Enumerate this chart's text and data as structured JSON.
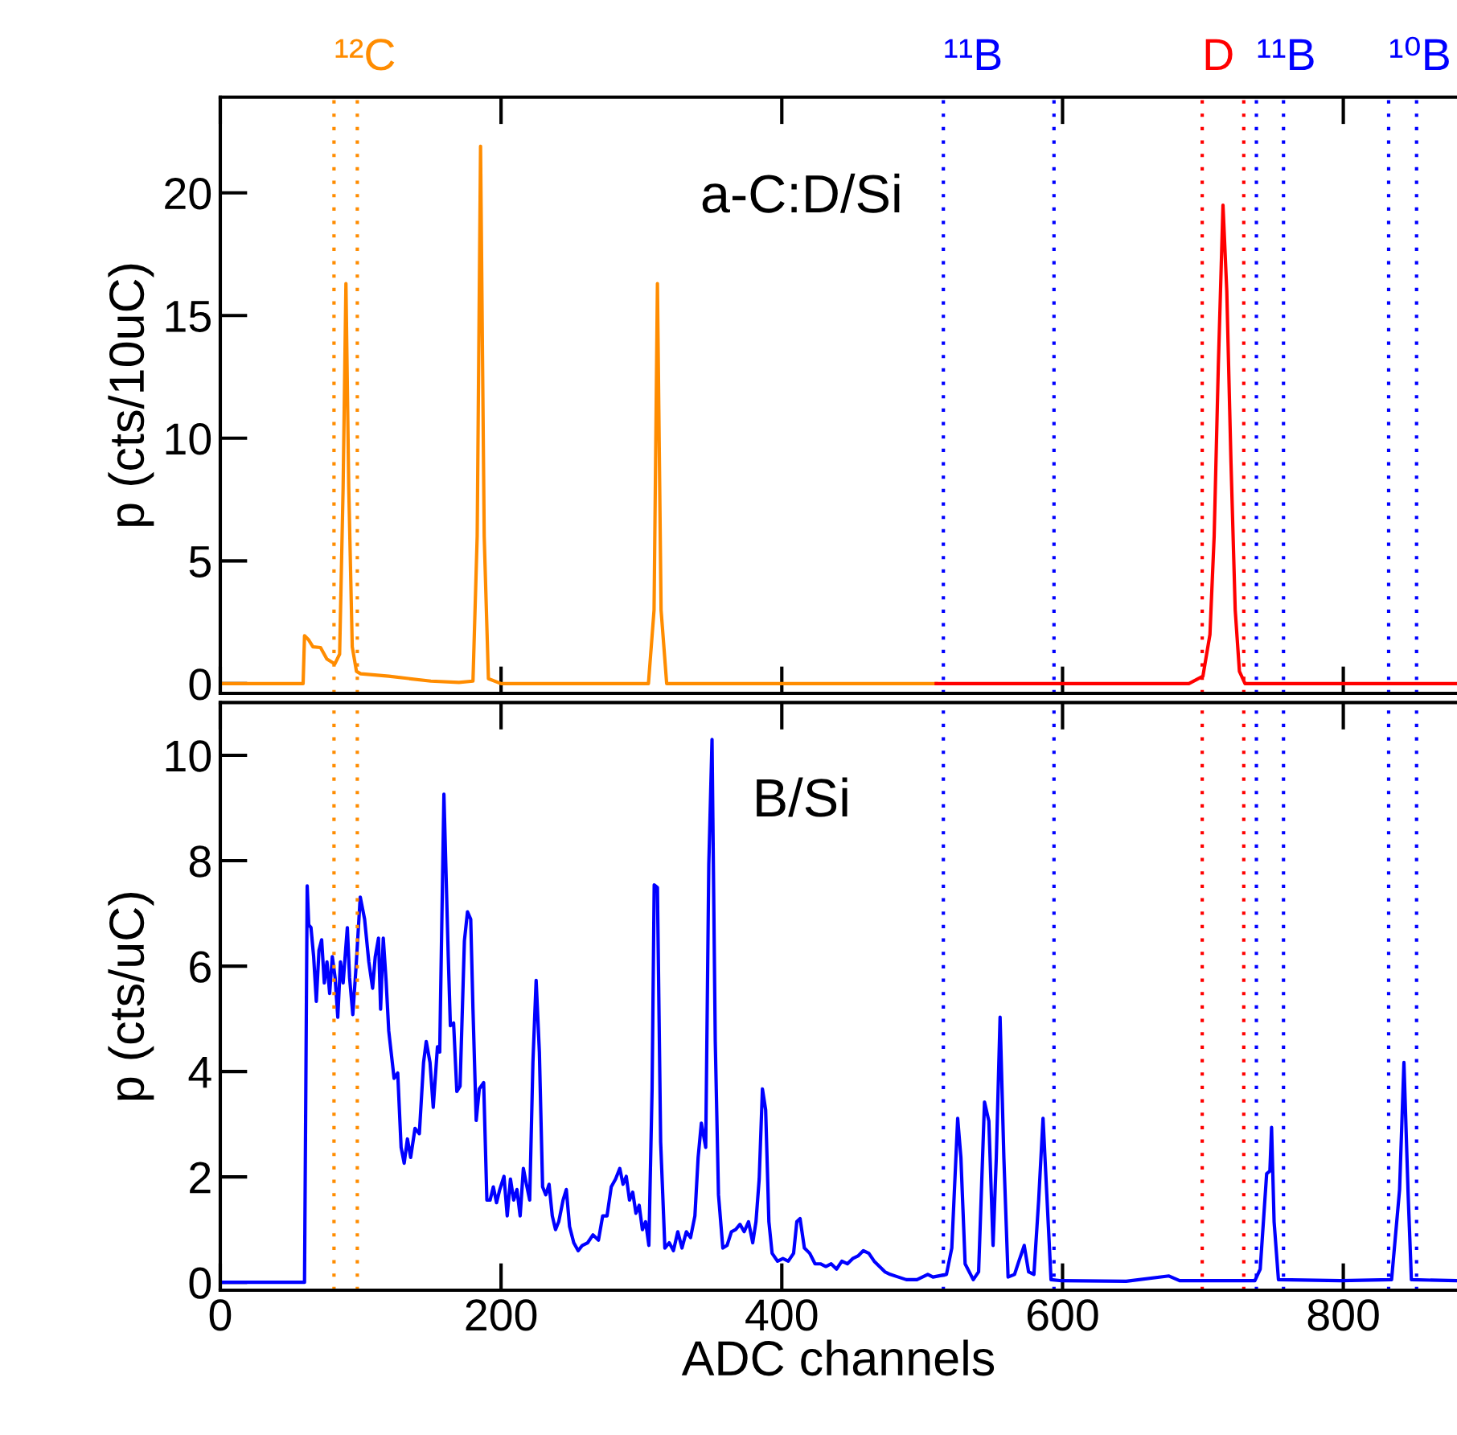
{
  "chart_data": [
    {
      "type": "line",
      "ylabel": "p (cts/10uC)",
      "xlim": [
        0,
        881
      ],
      "xticks": [
        0,
        200,
        400,
        600,
        800
      ],
      "ylim": [
        -0.4,
        23.9
      ],
      "yticks": [
        0,
        5,
        10,
        15,
        20
      ],
      "tick_labels": "y",
      "grid": false,
      "legend": false,
      "annotations": [
        "a-C:D/Si"
      ],
      "ref_lines": [
        {
          "axis": "x",
          "value": 81.0,
          "label": "¹²C",
          "color": "#ff8c00",
          "line_style": "dotted"
        },
        {
          "axis": "x",
          "value": 97.6,
          "color": "#ff8c00",
          "line_style": "dotted"
        },
        {
          "axis": "x",
          "value": 515.1,
          "label": "¹¹B",
          "color": "#0000ff",
          "line_style": "dotted"
        },
        {
          "axis": "x",
          "value": 593.9,
          "color": "#0000ff",
          "line_style": "dotted"
        },
        {
          "axis": "x",
          "value": 699.5,
          "label": "D",
          "color": "#ff0000",
          "line_style": "dotted"
        },
        {
          "axis": "x",
          "value": 729.1,
          "color": "#ff0000",
          "line_style": "dotted"
        },
        {
          "axis": "x",
          "value": 738.1,
          "label": "¹¹B",
          "color": "#0000ff",
          "line_style": "dotted"
        },
        {
          "axis": "x",
          "value": 757.4,
          "color": "#0000ff",
          "line_style": "dotted"
        },
        {
          "axis": "x",
          "value": 832.3,
          "label": "¹⁰B",
          "color": "#0000ff",
          "line_style": "dotted"
        },
        {
          "axis": "x",
          "value": 852.2,
          "color": "#0000ff",
          "line_style": "dotted"
        }
      ],
      "series": [
        {
          "color": "#ff8c00",
          "x": [
            0,
            59,
            60,
            62.7,
            66,
            71.4,
            75.9,
            81.6,
            85,
            87.5,
            89.5,
            91.5,
            94,
            97,
            100,
            120,
            150,
            170,
            180,
            183,
            185.4,
            188,
            191,
            200,
            305,
            309,
            311.4,
            314,
            318,
            510
          ],
          "values": [
            0,
            0,
            1.95,
            1.8,
            1.5,
            1.47,
            1.0,
            0.8,
            1.2,
            8,
            16.3,
            8,
            1.5,
            0.5,
            0.4,
            0.3,
            0.1,
            0.05,
            0.1,
            6,
            21.9,
            6,
            0.2,
            0,
            0,
            3,
            16.3,
            3,
            0,
            0
          ]
        },
        {
          "color": "#ff0000",
          "x": [
            510,
            690,
            700,
            705,
            708,
            711,
            714.3,
            717,
            720,
            723,
            726,
            730,
            881
          ],
          "values": [
            0,
            0,
            0.3,
            2,
            6,
            13,
            19.5,
            16,
            9,
            3,
            0.5,
            0,
            0
          ]
        }
      ]
    },
    {
      "type": "line",
      "xlabel": "ADC channels",
      "ylabel": "p (cts/uC)",
      "xlim": [
        0,
        881
      ],
      "xticks": [
        0,
        200,
        400,
        600,
        800
      ],
      "ylim": [
        -0.15,
        11.0
      ],
      "yticks": [
        0,
        2,
        4,
        6,
        8,
        10
      ],
      "grid": false,
      "legend": false,
      "annotations": [
        "B/Si"
      ],
      "ref_lines": [
        {
          "axis": "x",
          "value": 81.0,
          "color": "#ff8c00",
          "line_style": "dotted"
        },
        {
          "axis": "x",
          "value": 97.6,
          "color": "#ff8c00",
          "line_style": "dotted"
        },
        {
          "axis": "x",
          "value": 515.1,
          "color": "#0000ff",
          "line_style": "dotted"
        },
        {
          "axis": "x",
          "value": 593.9,
          "color": "#0000ff",
          "line_style": "dotted"
        },
        {
          "axis": "x",
          "value": 699.5,
          "color": "#ff0000",
          "line_style": "dotted"
        },
        {
          "axis": "x",
          "value": 729.1,
          "color": "#ff0000",
          "line_style": "dotted"
        },
        {
          "axis": "x",
          "value": 738.1,
          "color": "#0000ff",
          "line_style": "dotted"
        },
        {
          "axis": "x",
          "value": 757.4,
          "color": "#0000ff",
          "line_style": "dotted"
        },
        {
          "axis": "x",
          "value": 832.3,
          "color": "#0000ff",
          "line_style": "dotted"
        },
        {
          "axis": "x",
          "value": 852.2,
          "color": "#0000ff",
          "line_style": "dotted"
        }
      ],
      "series": [
        {
          "color": "#0000ff",
          "x": [
            0,
            59,
            60,
            61.9,
            63,
            64.6,
            66.5,
            68.4,
            70.3,
            72.2,
            74.1,
            76,
            77.9,
            79.8,
            81.8,
            83.7,
            85.6,
            87.5,
            90.5,
            92.1,
            94.4,
            96.7,
            99.7,
            102.8,
            105.8,
            108.5,
            110.4,
            112.7,
            114.2,
            116.1,
            118.1,
            120,
            123.8,
            126.4,
            128.8,
            131.0,
            133.3,
            135.6,
            138.7,
            141.8,
            144.8,
            146.7,
            149.4,
            151.7,
            154.7,
            156.3,
            159.3,
            162.4,
            163.9,
            166.2,
            168.5,
            170.8,
            173.9,
            176.1,
            178.4,
            180.0,
            182.3,
            184.5,
            187.6,
            189.9,
            192.2,
            194.5,
            196.8,
            199.1,
            202.1,
            204.4,
            206.7,
            209.0,
            211.3,
            213.6,
            215.9,
            218.1,
            220.4,
            222.7,
            225.0,
            227.3,
            229.6,
            231.9,
            234.2,
            236.5,
            238.8,
            241.1,
            244.2,
            246.5,
            248.8,
            251.8,
            254.9,
            257.9,
            261.7,
            265.5,
            269.4,
            272.4,
            275.5,
            278.5,
            281.6,
            284.6,
            286.9,
            289.2,
            291.5,
            293.8,
            296.1,
            298.4,
            300.7,
            303.0,
            305.3,
            307.6,
            309.1,
            311.4,
            313.7,
            316.7,
            319.8,
            322.8,
            325.9,
            328.9,
            332.0,
            335.0,
            338.1,
            340.4,
            342.7,
            345.8,
            348.0,
            350.3,
            352.6,
            354.9,
            358.0,
            361.0,
            364.1,
            367.1,
            370.2,
            373.2,
            376.3,
            379.3,
            381.6,
            383.9,
            386.2,
            388.5,
            390.8,
            393.1,
            397.0,
            400.8,
            404.6,
            408.4,
            410.7,
            413.0,
            416.1,
            419.9,
            423.7,
            427.5,
            431.4,
            435.2,
            439.0,
            442.8,
            446.7,
            450.5,
            454.3,
            458.1,
            462.0,
            465.8,
            469.6,
            473.4,
            477.2,
            483.0,
            488.7,
            496.3,
            504.0,
            507.7,
            517.3,
            521.1,
            525.3,
            527.6,
            530.6,
            536.4,
            540.2,
            544.4,
            547.5,
            550.5,
            552.8,
            555.5,
            558.2,
            561.2,
            565.8,
            568.9,
            572.7,
            575.8,
            579.6,
            583.0,
            586.1,
            588.8,
            591.8,
            599.4,
            645.3,
            675.8,
            683.4,
            737,
            740.8,
            745.4,
            747.7,
            748.9,
            750.7,
            753.8,
            798,
            834.4,
            840.1,
            843.2,
            846.2,
            848.5,
            881
          ],
          "values": [
            0,
            0,
            0,
            7.52,
            6.78,
            6.73,
            6.18,
            5.33,
            6.3,
            6.5,
            5.68,
            6.08,
            5.48,
            6.18,
            5.78,
            5.03,
            6.08,
            5.68,
            6.73,
            5.78,
            5.08,
            5.98,
            7.31,
            6.89,
            6.08,
            5.58,
            6.18,
            6.53,
            5.18,
            6.53,
            5.73,
            4.77,
            3.87,
            3.97,
            2.56,
            2.26,
            2.72,
            2.37,
            2.92,
            2.82,
            4.17,
            4.57,
            4.17,
            3.32,
            4.47,
            4.37,
            9.26,
            6.18,
            4.87,
            4.92,
            3.62,
            3.72,
            6.48,
            7.03,
            6.89,
            5.18,
            3.07,
            3.67,
            3.79,
            1.56,
            1.56,
            1.81,
            1.51,
            1.76,
            2.01,
            1.26,
            1.96,
            1.56,
            1.76,
            1.26,
            2.16,
            1.86,
            1.56,
            4.17,
            5.73,
            4.37,
            1.81,
            1.66,
            1.86,
            1.26,
            1.0,
            1.15,
            1.56,
            1.76,
            1.06,
            0.75,
            0.6,
            0.7,
            0.75,
            0.9,
            0.8,
            1.26,
            1.26,
            1.81,
            1.96,
            2.16,
            1.86,
            2.01,
            1.56,
            1.71,
            1.31,
            1.46,
            1.0,
            1.15,
            0.7,
            3.67,
            7.54,
            7.49,
            2.66,
            0.65,
            0.75,
            0.6,
            0.96,
            0.65,
            0.96,
            0.85,
            1.26,
            2.37,
            3.02,
            2.56,
            7.93,
            10.3,
            4.57,
            1.66,
            0.65,
            0.7,
            0.96,
            1.0,
            1.1,
            0.96,
            1.15,
            0.75,
            1.15,
            1.96,
            3.67,
            3.27,
            1.15,
            0.55,
            0.4,
            0.45,
            0.4,
            0.55,
            1.15,
            1.21,
            0.65,
            0.55,
            0.35,
            0.35,
            0.3,
            0.35,
            0.25,
            0.4,
            0.35,
            0.45,
            0.5,
            0.6,
            0.55,
            0.4,
            0.3,
            0.2,
            0.15,
            0.1,
            0.05,
            0.05,
            0.15,
            0.1,
            0.15,
            0.65,
            3.11,
            2.36,
            0.35,
            0.05,
            0.2,
            3.42,
            3.06,
            0.7,
            2.36,
            5.03,
            2.36,
            0.1,
            0.15,
            0.4,
            0.7,
            0.2,
            0.15,
            1.56,
            3.11,
            1.66,
            0.05,
            0.03,
            0.02,
            0.12,
            0.03,
            0.03,
            0.25,
            2.06,
            2.11,
            2.94,
            1.15,
            0.05,
            0.03,
            0.05,
            1.76,
            4.17,
            1.66,
            0.05,
            0.03
          ]
        }
      ]
    }
  ]
}
